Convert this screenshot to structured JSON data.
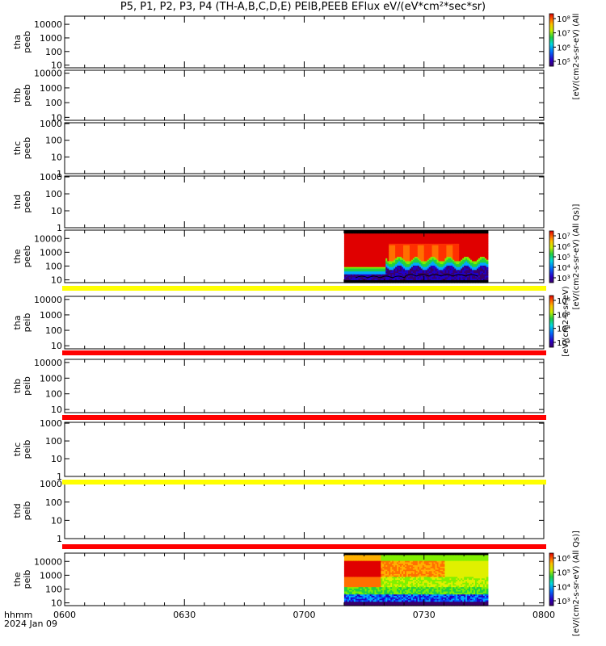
{
  "chart_data": {
    "type": "heatmap",
    "title": "P5, P1, P2, P3, P4 (TH-A,B,C,D,E) PEIB,PEEB EFlux eV/(eV*cm²*sec*sr)",
    "x_ticks": [
      "0600",
      "0630",
      "0700",
      "0730",
      "0800"
    ],
    "x_range": [
      "0600",
      "0800"
    ],
    "x_label_line1": "hhmm",
    "x_label_line2": "2024 Jan 09",
    "data_interval": [
      "0710",
      "0746"
    ],
    "panels": [
      {
        "label1": "tha",
        "label2": "peeb",
        "yticks": [
          "10000",
          "1000",
          "100",
          "10"
        ],
        "ylim_log": [
          0.8,
          4.6
        ],
        "data": false
      },
      {
        "label1": "thb",
        "label2": "peeb",
        "yticks": [
          "10000",
          "1000",
          "100",
          "10"
        ],
        "ylim_log": [
          0.8,
          4.2
        ],
        "data": false
      },
      {
        "label1": "thc",
        "label2": "peeb",
        "yticks": [
          "1000",
          "100",
          "10",
          "1"
        ],
        "ylim_log": [
          0,
          3.05
        ],
        "data": false
      },
      {
        "label1": "thd",
        "label2": "peeb",
        "yticks": [
          "1000",
          "100",
          "10",
          "1"
        ],
        "ylim_log": [
          0,
          3.05
        ],
        "data": false
      },
      {
        "label1": "the",
        "label2": "peeb",
        "yticks": [
          "10000",
          "1000",
          "100",
          "10"
        ],
        "ylim_log": [
          0.8,
          4.6
        ],
        "data": true,
        "product": "electron"
      },
      {
        "label1": "tha",
        "label2": "peib",
        "yticks": [
          "10000",
          "1000",
          "100",
          "10"
        ],
        "ylim_log": [
          0.8,
          4.2
        ],
        "data": false
      },
      {
        "label1": "thb",
        "label2": "peib",
        "yticks": [
          "10000",
          "1000",
          "100",
          "10"
        ],
        "ylim_log": [
          0.8,
          4.2
        ],
        "data": false
      },
      {
        "label1": "thc",
        "label2": "peib",
        "yticks": [
          "1000",
          "100",
          "10",
          "1"
        ],
        "ylim_log": [
          0,
          3.05
        ],
        "data": false
      },
      {
        "label1": "thd",
        "label2": "peib",
        "yticks": [
          "1000",
          "100",
          "10",
          "1"
        ],
        "ylim_log": [
          0,
          3.05
        ],
        "data": false
      },
      {
        "label1": "the",
        "label2": "peib",
        "yticks": [
          "10000",
          "1000",
          "100",
          "10"
        ],
        "ylim_log": [
          0.8,
          4.6
        ],
        "data": true,
        "product": "ion"
      }
    ],
    "status_bars": [
      {
        "color": "#ffff00"
      },
      {
        "color": "#ff0000"
      },
      {
        "color": "#ff0000"
      },
      {
        "color": "#ffff00"
      },
      {
        "color": "#ff0000"
      }
    ],
    "colorbars": [
      {
        "ticks": [
          "10⁸",
          "10⁷",
          "10⁶",
          "10⁵"
        ],
        "label": "[eV/(cm2-s-sr-eV) (All"
      },
      {
        "ticks": [
          "10⁷",
          "10⁶",
          "10⁵",
          "10⁴",
          "10³"
        ],
        "label": "[eV/(cm2-s-sr-eV) (All Qs)]"
      },
      {
        "ticks": [
          "10⁶",
          "10⁵",
          "10⁴",
          "10³"
        ],
        "label": "[eV/(cm2-s-sr-eV)"
      },
      {
        "ticks": [
          "10⁶",
          "10⁵",
          "10⁴",
          "10³"
        ],
        "label": "[eV/(cm2-s-sr-eV) (All Qs)]"
      }
    ]
  }
}
